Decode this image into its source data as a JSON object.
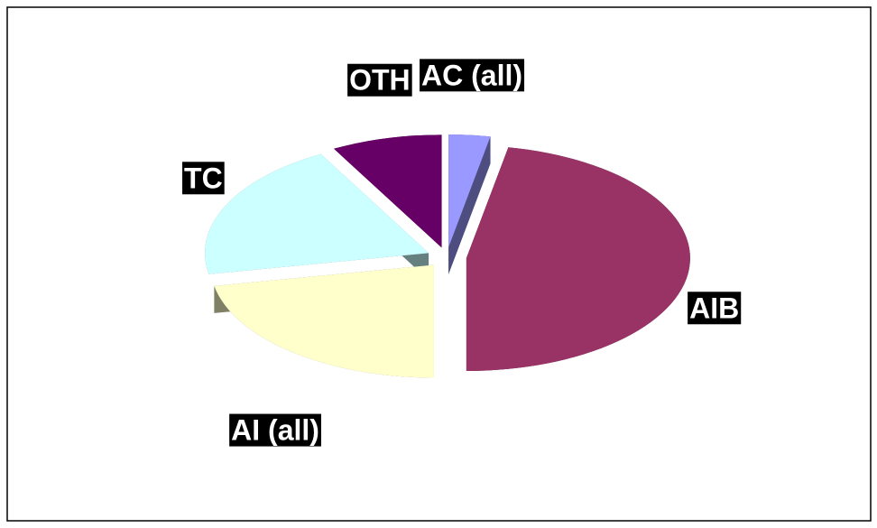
{
  "chart_data": {
    "type": "pie3d",
    "categories": [
      "AC (all)",
      "AIB",
      "AI (all)",
      "TC",
      "OTH"
    ],
    "values": [
      3,
      47,
      22,
      20,
      8
    ],
    "colors": [
      "#9999ff",
      "#993366",
      "#ffffcc",
      "#ccffff",
      "#660066"
    ]
  }
}
